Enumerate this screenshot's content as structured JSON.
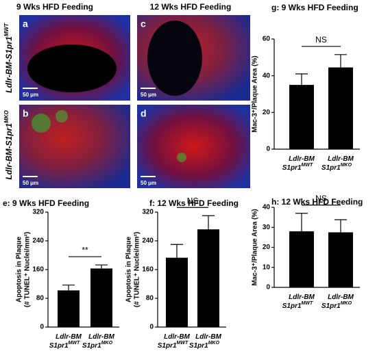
{
  "image_panels": {
    "columns": [
      "9 Wks HFD Feeding",
      "12 Wks HFD Feeding"
    ],
    "rows": [
      {
        "base": "Ldlr-BM-S1pr1",
        "sup": "MWT"
      },
      {
        "base": "Ldlr-BM-S1pr1",
        "sup": "MKO"
      }
    ],
    "panels": [
      {
        "letter": "a",
        "scale": "50 μm"
      },
      {
        "letter": "c",
        "scale": "50 μm"
      },
      {
        "letter": "b",
        "scale": "50 μm"
      },
      {
        "letter": "d",
        "scale": "50 μm"
      }
    ]
  },
  "chart_data": [
    {
      "type": "bar",
      "title": "g: 9 Wks HFD Feeding",
      "ylabel": [
        "Mac-3⁺/Plaque Area (%)"
      ],
      "categories": [
        {
          "line1": "Ldlr-BM",
          "line2": "S1pr1",
          "sup": "MWT"
        },
        {
          "line1": "Ldlr-BM",
          "line2": "S1pr1",
          "sup": "MKO"
        }
      ],
      "values": [
        35,
        44.5
      ],
      "errors": [
        6,
        7
      ],
      "color": "#000000",
      "annotation": "NS",
      "ylim": [
        0,
        60
      ],
      "yticks": [
        0,
        20,
        40,
        60
      ]
    },
    {
      "type": "bar",
      "title": "h: 12 Wks HFD Feeding",
      "ylabel": [
        "Mac-3⁺/Plaque Area (%)"
      ],
      "categories": [
        {
          "line1": "Ldlr-BM",
          "line2": "S1pr1",
          "sup": "MWT"
        },
        {
          "line1": "Ldlr-BM",
          "line2": "S1pr1",
          "sup": "MKO"
        }
      ],
      "values": [
        28,
        27.5
      ],
      "errors": [
        9,
        6.3
      ],
      "color": "#000000",
      "annotation": "NS",
      "ylim": [
        0,
        40
      ],
      "yticks": [
        0,
        10,
        20,
        30,
        40
      ]
    },
    {
      "type": "bar",
      "title": "e: 9 Wks HFD Feeding",
      "ylabel": [
        "Apoptosis in Plaque",
        "(# TUNEL⁺ Nuclei/mm²)"
      ],
      "categories": [
        {
          "line1": "Ldlr-BM",
          "line2": "S1pr1",
          "sup": "MWT"
        },
        {
          "line1": "Ldlr-BM",
          "line2": "S1pr1",
          "sup": "MKO"
        }
      ],
      "values": [
        102,
        163
      ],
      "errors": [
        15,
        10
      ],
      "color": "#000000",
      "annotation": "**",
      "ylim": [
        0,
        320
      ],
      "yticks": [
        0,
        80,
        160,
        240,
        320
      ]
    },
    {
      "type": "bar",
      "title": "f: 12 Wks HFD Feeding",
      "ylabel": [
        "Apoptosis in Plaque",
        "(# TUNEL⁺ Nuclei/mm²)"
      ],
      "categories": [
        {
          "line1": "Ldlr-BM",
          "line2": "S1pr1",
          "sup": "MWT"
        },
        {
          "line1": "Ldlr-BM",
          "line2": "S1pr1",
          "sup": "MKO"
        }
      ],
      "values": [
        193,
        272
      ],
      "errors": [
        37,
        38
      ],
      "color": "#000000",
      "annotation": "NS",
      "ylim": [
        0,
        320
      ],
      "yticks": [
        0,
        80,
        160,
        240,
        320
      ]
    }
  ]
}
